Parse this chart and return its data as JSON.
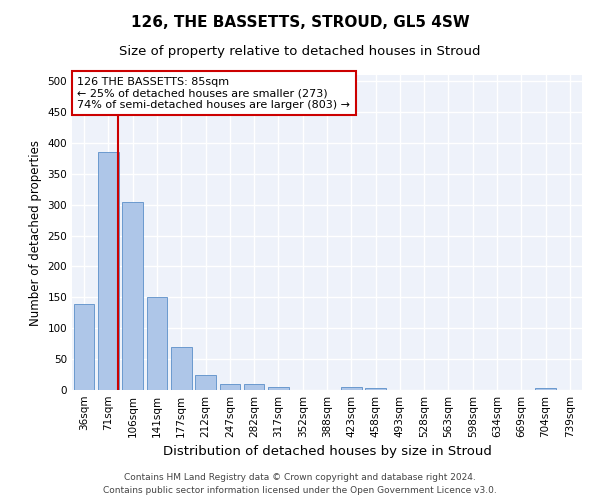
{
  "title": "126, THE BASSETTS, STROUD, GL5 4SW",
  "subtitle": "Size of property relative to detached houses in Stroud",
  "xlabel": "Distribution of detached houses by size in Stroud",
  "ylabel": "Number of detached properties",
  "categories": [
    "36sqm",
    "71sqm",
    "106sqm",
    "141sqm",
    "177sqm",
    "212sqm",
    "247sqm",
    "282sqm",
    "317sqm",
    "352sqm",
    "388sqm",
    "423sqm",
    "458sqm",
    "493sqm",
    "528sqm",
    "563sqm",
    "598sqm",
    "634sqm",
    "669sqm",
    "704sqm",
    "739sqm"
  ],
  "values": [
    140,
    385,
    305,
    150,
    70,
    25,
    10,
    9,
    5,
    0,
    0,
    5,
    4,
    0,
    0,
    0,
    0,
    0,
    0,
    4,
    0
  ],
  "bar_color": "#aec6e8",
  "bar_edge_color": "#5b8fc9",
  "red_line_color": "#cc0000",
  "annotation_text": "126 THE BASSETTS: 85sqm\n← 25% of detached houses are smaller (273)\n74% of semi-detached houses are larger (803) →",
  "annotation_box_color": "white",
  "annotation_box_edge_color": "#cc0000",
  "ylim": [
    0,
    510
  ],
  "yticks": [
    0,
    50,
    100,
    150,
    200,
    250,
    300,
    350,
    400,
    450,
    500
  ],
  "background_color": "#eef2fa",
  "grid_color": "white",
  "footer": "Contains HM Land Registry data © Crown copyright and database right 2024.\nContains public sector information licensed under the Open Government Licence v3.0.",
  "title_fontsize": 11,
  "subtitle_fontsize": 9.5,
  "xlabel_fontsize": 9.5,
  "ylabel_fontsize": 8.5,
  "tick_fontsize": 7.5,
  "annotation_fontsize": 8,
  "footer_fontsize": 6.5
}
